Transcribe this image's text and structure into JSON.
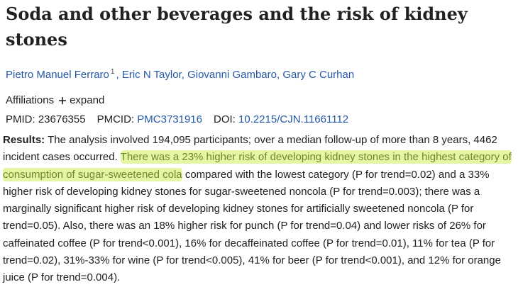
{
  "header": {
    "title": "Soda and other beverages and the risk of kidney stones"
  },
  "authors": {
    "separator": ",",
    "list": [
      {
        "name": "Pietro Manuel Ferraro",
        "affiliation": "1"
      },
      {
        "name": "Eric N Taylor"
      },
      {
        "name": "Giovanni Gambaro"
      },
      {
        "name": "Gary C Curhan"
      }
    ]
  },
  "affiliations": {
    "label": "Affiliations",
    "action": "expand"
  },
  "identifiers": [
    {
      "label": "PMID:",
      "value": "23676355",
      "link": false
    },
    {
      "label": "PMCID:",
      "value": "PMC3731916",
      "link": true
    },
    {
      "label": "DOI:",
      "value": "10.2215/CJN.11661112",
      "link": true
    }
  ],
  "abstract": {
    "label": "Results:",
    "before": "The analysis involved 194,095 participants; over a median follow-up of more than 8 years, 4462 incident cases occurred.",
    "highlight": "There was a 23% higher risk of developing kidney stones in the highest category of consumption of sugar-sweetened cola",
    "after": "compared with the lowest category (P for trend=0.02) and a 33% higher risk of developing kidney stones for sugar-sweetened noncola (P for trend=0.003); there was a marginally significant higher risk of developing kidney stones for artificially sweetened noncola (P for trend=0.05). Also, there was an 18% higher risk for punch (P for trend=0.04) and lower risks of 26% for caffeinated coffee (P for trend<0.001), 16% for decaffeinated coffee (P for trend=0.01), 11% for tea (P for trend=0.02), 31%-33% for wine (P for trend<0.005), 41% for beer (P for trend<0.001), and 12% for orange juice (P for trend=0.004)."
  }
}
